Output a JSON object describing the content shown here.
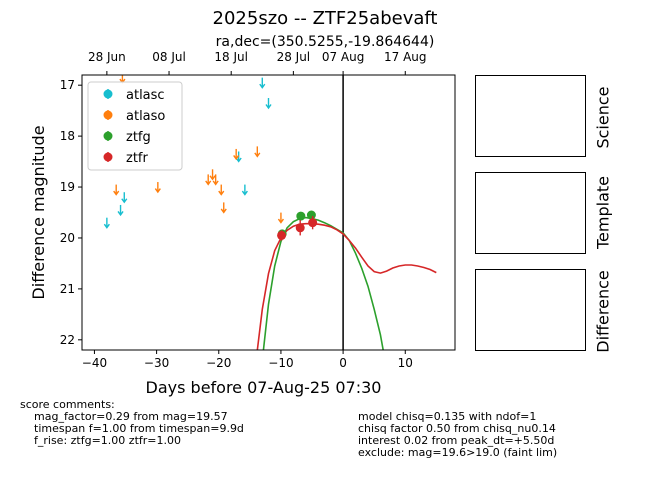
{
  "header": {
    "title": "2025szo -- ZTF25abevaft",
    "subtitle": "ra,dec=(350.5255,-19.864644)"
  },
  "chart_data": {
    "type": "scatter",
    "xlabel": "Days before 07-Aug-25 07:30",
    "ylabel": "Difference magnitude",
    "xlim": [
      -42,
      18
    ],
    "ylim": [
      22.2,
      16.8
    ],
    "inverted_y": true,
    "x_ticks": [
      -40,
      -30,
      -20,
      -10,
      0,
      10
    ],
    "y_ticks": [
      17,
      18,
      19,
      20,
      21,
      22
    ],
    "top_axis_ticks": [
      {
        "x": -38.0,
        "label": "28 Jun"
      },
      {
        "x": -28.0,
        "label": "08 Jul"
      },
      {
        "x": -18.0,
        "label": "18 Jul"
      },
      {
        "x": -8.0,
        "label": "28 Jul"
      },
      {
        "x": 0.0,
        "label": "07 Aug"
      },
      {
        "x": 10.0,
        "label": "17 Aug"
      }
    ],
    "vertical_line_x": 0,
    "legend": {
      "placement": "top-left",
      "entries": [
        {
          "name": "atlasc",
          "color": "#17becf"
        },
        {
          "name": "atlaso",
          "color": "#ff7f0e"
        },
        {
          "name": "ztfg",
          "color": "#2ca02c"
        },
        {
          "name": "ztfr",
          "color": "#d62728"
        }
      ]
    },
    "upper_limits": [
      {
        "series": "atlasc",
        "color": "#17becf",
        "points": [
          [
            -38,
            19.7
          ],
          [
            -35.8,
            19.45
          ],
          [
            -35.2,
            19.2
          ],
          [
            -16.8,
            18.4
          ],
          [
            -15.8,
            19.05
          ],
          [
            -13,
            16.95
          ],
          [
            -12,
            17.35
          ]
        ]
      },
      {
        "series": "atlaso",
        "color": "#ff7f0e",
        "points": [
          [
            -36.5,
            19.05
          ],
          [
            -35.5,
            16.85
          ],
          [
            -29.8,
            19.0
          ],
          [
            -21.7,
            18.85
          ],
          [
            -21,
            18.75
          ],
          [
            -20.5,
            18.85
          ],
          [
            -19.6,
            19.05
          ],
          [
            -19.2,
            19.4
          ],
          [
            -17.2,
            18.35
          ],
          [
            -13.8,
            18.3
          ],
          [
            -10,
            19.6
          ]
        ]
      }
    ],
    "detections": [
      {
        "series": "ztfg",
        "color": "#2ca02c",
        "points": [
          [
            -9.8,
            19.92,
            0.08
          ],
          [
            -6.8,
            19.57,
            0.07
          ],
          [
            -5.1,
            19.55,
            0.08
          ]
        ]
      },
      {
        "series": "ztfr",
        "color": "#d62728",
        "points": [
          [
            -9.9,
            19.95,
            0.1
          ],
          [
            -6.9,
            19.8,
            0.15
          ],
          [
            -4.9,
            19.7,
            0.13
          ]
        ]
      }
    ],
    "model_curves": [
      {
        "series": "ztfg",
        "color": "#2ca02c",
        "points": [
          [
            -13.0,
            22.4
          ],
          [
            -12.0,
            21.3
          ],
          [
            -11.0,
            20.55
          ],
          [
            -10.0,
            20.07
          ],
          [
            -9.0,
            19.8
          ],
          [
            -8.0,
            19.68
          ],
          [
            -7.0,
            19.62
          ],
          [
            -6.0,
            19.6
          ],
          [
            -5.0,
            19.62
          ],
          [
            -4.0,
            19.65
          ],
          [
            -3.0,
            19.7
          ],
          [
            -2.0,
            19.76
          ],
          [
            -1.0,
            19.83
          ],
          [
            0.0,
            19.9
          ],
          [
            1.0,
            20.05
          ],
          [
            2.0,
            20.3
          ],
          [
            3.0,
            20.6
          ],
          [
            4.0,
            20.95
          ],
          [
            5.0,
            21.4
          ],
          [
            6.0,
            21.9
          ],
          [
            6.6,
            22.3
          ]
        ]
      },
      {
        "series": "ztfr",
        "color": "#d62728",
        "points": [
          [
            -14.0,
            22.4
          ],
          [
            -13.0,
            21.4
          ],
          [
            -12.0,
            20.7
          ],
          [
            -11.0,
            20.25
          ],
          [
            -10.0,
            20.0
          ],
          [
            -9.0,
            19.85
          ],
          [
            -8.0,
            19.77
          ],
          [
            -7.0,
            19.73
          ],
          [
            -6.0,
            19.72
          ],
          [
            -5.0,
            19.72
          ],
          [
            -4.0,
            19.73
          ],
          [
            -3.0,
            19.75
          ],
          [
            -2.0,
            19.78
          ],
          [
            -1.0,
            19.84
          ],
          [
            0.0,
            19.92
          ],
          [
            1.0,
            20.05
          ],
          [
            2.0,
            20.2
          ],
          [
            3.0,
            20.38
          ],
          [
            4.0,
            20.55
          ],
          [
            5.0,
            20.66
          ],
          [
            6.0,
            20.69
          ],
          [
            7.0,
            20.65
          ],
          [
            8.0,
            20.59
          ],
          [
            9.0,
            20.55
          ],
          [
            10.0,
            20.53
          ],
          [
            11.0,
            20.53
          ],
          [
            12.0,
            20.55
          ],
          [
            13.0,
            20.58
          ],
          [
            14.0,
            20.62
          ],
          [
            15.0,
            20.68
          ]
        ]
      }
    ]
  },
  "side_panels": {
    "science_label": "Science",
    "template_label": "Template",
    "difference_label": "Difference"
  },
  "comments_left": {
    "heading": "score comments:",
    "line1": "mag_factor=0.29 from mag=19.57",
    "line2": "timespan f=1.00 from timespan=9.9d",
    "line3": "f_rise: ztfg=1.00 ztfr=1.00"
  },
  "comments_right": {
    "line1": "model chisq=0.135 with ndof=1",
    "line2": "chisq factor 0.50 from chisq_nu0.14",
    "line3": "interest 0.02 from peak_dt=+5.50d",
    "line4": "exclude: mag=19.6>19.0 (faint lim)"
  }
}
